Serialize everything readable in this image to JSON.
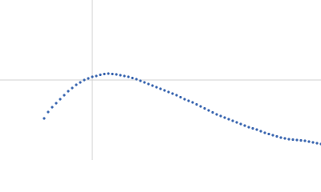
{
  "chart_data": {
    "type": "scatter",
    "color": "#3a66b0",
    "xlim": [
      0,
      400
    ],
    "ylim": [
      0,
      200
    ],
    "reference_x": 115,
    "reference_y": 100,
    "reference_color": "#d0d0d0",
    "x": [
      55,
      60,
      65,
      70,
      75,
      80,
      85,
      90,
      95,
      100,
      105,
      110,
      115,
      120,
      125,
      130,
      135,
      140,
      145,
      150,
      155,
      160,
      165,
      170,
      175,
      180,
      185,
      190,
      195,
      200,
      205,
      210,
      215,
      220,
      225,
      230,
      235,
      240,
      245,
      250,
      255,
      260,
      265,
      270,
      275,
      280,
      285,
      290,
      295,
      300,
      305,
      310,
      315,
      320,
      325,
      330,
      335,
      340,
      345,
      350,
      355,
      360,
      365,
      370,
      375,
      380,
      385,
      390,
      395,
      400
    ],
    "values": [
      52,
      60,
      66,
      71,
      76,
      81,
      86,
      90,
      94,
      97,
      100,
      102,
      104,
      105,
      106.5,
      107.5,
      108,
      107.5,
      107,
      106,
      105,
      104,
      102.5,
      101,
      99,
      97,
      95,
      93,
      91,
      89,
      87,
      85,
      83,
      81,
      78.5,
      76,
      74,
      72,
      69.5,
      67,
      64.5,
      62,
      59.5,
      57,
      55,
      53,
      51,
      49,
      47,
      45,
      43,
      41,
      39.5,
      38,
      36,
      34,
      32.5,
      31,
      29.5,
      28,
      27,
      26,
      25.5,
      25,
      24.5,
      24,
      23,
      22,
      21,
      20
    ]
  }
}
